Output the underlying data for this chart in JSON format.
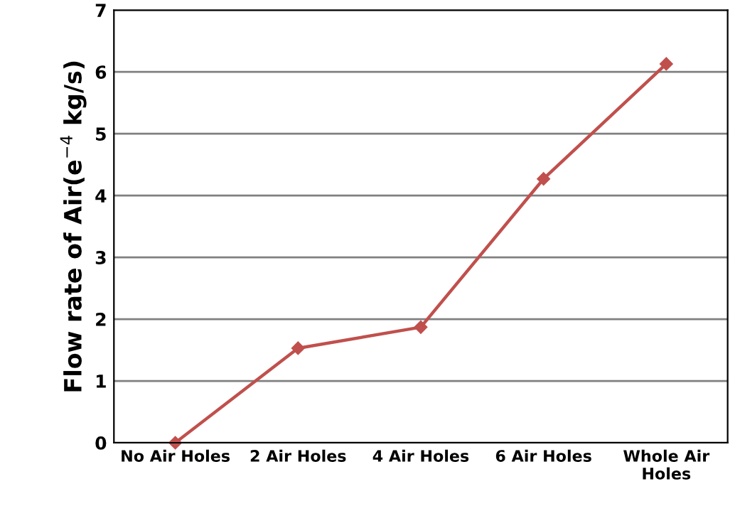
{
  "chart_data": {
    "type": "line",
    "ylabel": "Flow rate of Air(e$^{−4}$ kg/s)",
    "categories": [
      "No Air Holes",
      "2 Air Holes",
      "4 Air Holes",
      "6 Air Holes",
      "Whole Air\nHoles"
    ],
    "series": [
      {
        "color": "#c0504d",
        "values": [
          0,
          1.53,
          1.87,
          4.27,
          6.13
        ]
      }
    ],
    "ylim": [
      0,
      7
    ],
    "yticks": [
      0,
      1,
      2,
      3,
      4,
      5,
      6,
      7
    ],
    "grid": "y",
    "marker": "diamond",
    "line_style": "solid"
  }
}
